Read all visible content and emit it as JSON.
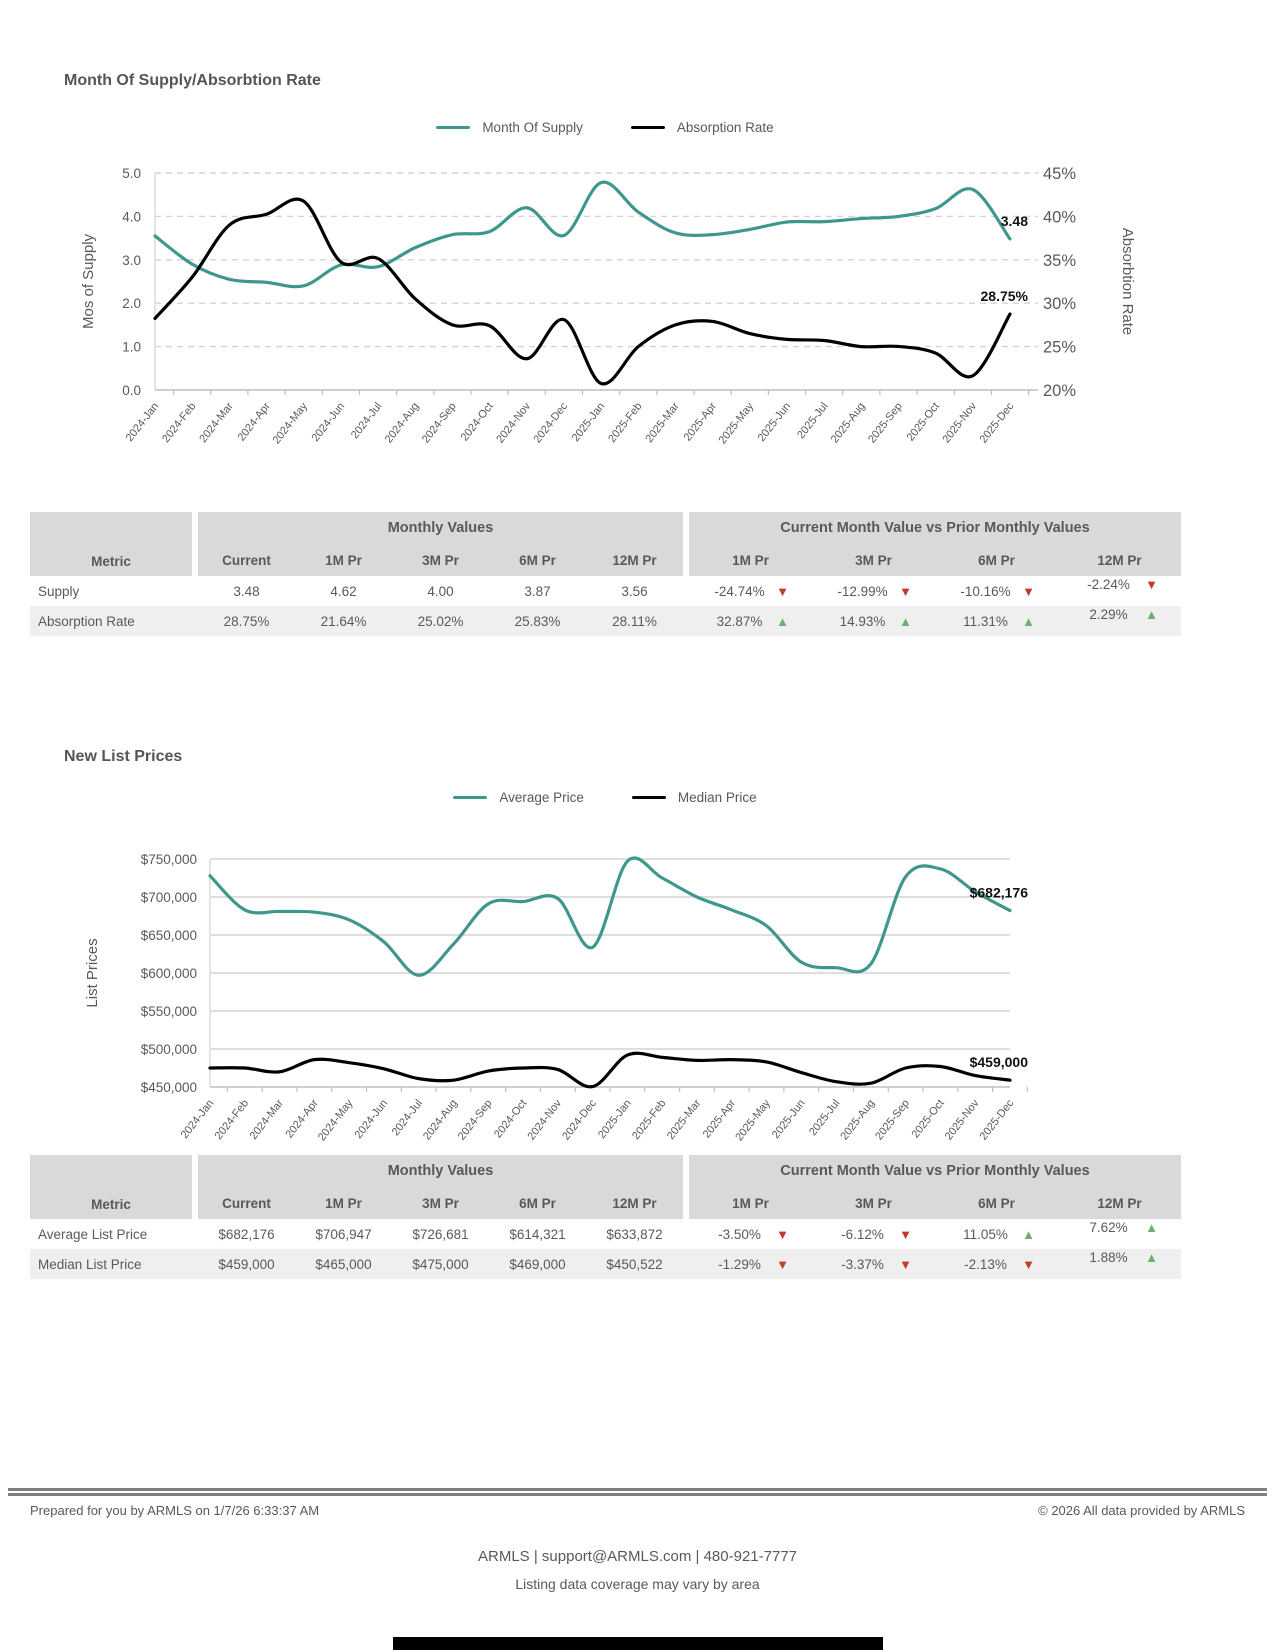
{
  "sections": [
    {
      "title": "Month Of Supply/Absorbtion Rate"
    },
    {
      "title": "New List Prices"
    }
  ],
  "colors": {
    "teal": "#3e978c",
    "black": "#000000",
    "up_green": "#6fae6f",
    "down_red": "#c23a2a",
    "text": "#595959"
  },
  "chart_data": [
    {
      "type": "line",
      "title": "Month Of Supply/Absorbtion Rate",
      "grid": "dashed",
      "legend_position": "top",
      "categories": [
        "2024-Jan",
        "2024-Feb",
        "2024-Mar",
        "2024-Apr",
        "2024-May",
        "2024-Jun",
        "2024-Jul",
        "2024-Aug",
        "2024-Sep",
        "2024-Oct",
        "2024-Nov",
        "2024-Dec",
        "2025-Jan",
        "2025-Feb",
        "2025-Mar",
        "2025-Apr",
        "2025-May",
        "2025-Jun",
        "2025-Jul",
        "2025-Aug",
        "2025-Sep",
        "2025-Oct",
        "2025-Nov",
        "2025-Dec"
      ],
      "series": [
        {
          "name": "Month Of Supply",
          "color_key": "teal",
          "axis": "left",
          "end_label": "3.48",
          "values": [
            3.55,
            2.9,
            2.55,
            2.48,
            2.4,
            2.88,
            2.84,
            3.28,
            3.58,
            3.65,
            4.2,
            3.56,
            4.78,
            4.1,
            3.62,
            3.58,
            3.7,
            3.87,
            3.88,
            3.95,
            4.0,
            4.18,
            4.62,
            3.48
          ]
        },
        {
          "name": "Absorption Rate",
          "color_key": "black",
          "axis": "right",
          "end_label": "28.75%",
          "values": [
            28.25,
            33.0,
            39.0,
            40.25,
            41.75,
            34.75,
            35.15,
            30.5,
            27.5,
            27.4,
            23.6,
            28.11,
            20.75,
            25.0,
            27.5,
            27.9,
            26.5,
            25.83,
            25.7,
            25.0,
            25.02,
            24.25,
            21.64,
            28.75
          ]
        }
      ],
      "left_axis": {
        "label": "Mos of Supply",
        "min": 0,
        "max": 5,
        "ticks": [
          {
            "v": 5,
            "label": "5.0"
          },
          {
            "v": 4,
            "label": "4.0"
          },
          {
            "v": 3,
            "label": "3.0"
          },
          {
            "v": 2,
            "label": "2.0"
          },
          {
            "v": 1,
            "label": "1.0"
          },
          {
            "v": 0,
            "label": "0.0"
          }
        ]
      },
      "right_axis": {
        "label": "Absorbtion Rate",
        "min": 20,
        "max": 45,
        "ticks": [
          {
            "v": 45,
            "label": "45%"
          },
          {
            "v": 40,
            "label": "40%"
          },
          {
            "v": 35,
            "label": "35%"
          },
          {
            "v": 30,
            "label": "30%"
          },
          {
            "v": 25,
            "label": "25%"
          },
          {
            "v": 20,
            "label": "20%"
          }
        ]
      }
    },
    {
      "type": "line",
      "title": "New List Prices",
      "grid": "solid",
      "legend_position": "top",
      "categories": [
        "2024-Jan",
        "2024-Feb",
        "2024-Mar",
        "2024-Apr",
        "2024-May",
        "2024-Jun",
        "2024-Jul",
        "2024-Aug",
        "2024-Sep",
        "2024-Oct",
        "2024-Nov",
        "2024-Dec",
        "2025-Jan",
        "2025-Feb",
        "2025-Mar",
        "2025-Apr",
        "2025-May",
        "2025-Jun",
        "2025-Jul",
        "2025-Aug",
        "2025-Sep",
        "2025-Oct",
        "2025-Nov",
        "2025-Dec"
      ],
      "series": [
        {
          "name": "Average Price",
          "color_key": "teal",
          "axis": "left",
          "end_label": "$682,176",
          "values": [
            728000,
            683000,
            681000,
            680000,
            670000,
            641000,
            597000,
            638000,
            691000,
            694000,
            698000,
            633872,
            747000,
            725000,
            700000,
            683000,
            662000,
            614321,
            607000,
            612000,
            726681,
            737000,
            706947,
            682176
          ]
        },
        {
          "name": "Median Price",
          "color_key": "black",
          "axis": "left",
          "end_label": "$459,000",
          "values": [
            475000,
            475000,
            470000,
            486000,
            482000,
            474000,
            461000,
            459000,
            471000,
            475000,
            473000,
            450522,
            492000,
            489000,
            485000,
            486000,
            483000,
            469000,
            457000,
            455000,
            475000,
            477000,
            465000,
            459000
          ]
        }
      ],
      "left_axis": {
        "label": "List Prices",
        "min": 450000,
        "max": 750000,
        "ticks": [
          {
            "v": 750000,
            "label": "$750,000"
          },
          {
            "v": 700000,
            "label": "$700,000"
          },
          {
            "v": 650000,
            "label": "$650,000"
          },
          {
            "v": 600000,
            "label": "$600,000"
          },
          {
            "v": 550000,
            "label": "$550,000"
          },
          {
            "v": 500000,
            "label": "$500,000"
          },
          {
            "v": 450000,
            "label": "$450,000"
          }
        ]
      }
    }
  ],
  "tables": [
    {
      "metric_header": "Metric",
      "group_headers": [
        "Monthly Values",
        "Current Month Value vs Prior Monthly Values"
      ],
      "value_columns": [
        "Current",
        "1M Pr",
        "3M Pr",
        "6M Pr",
        "12M Pr"
      ],
      "delta_columns": [
        "1M Pr",
        "3M Pr",
        "6M Pr",
        "12M Pr"
      ],
      "rows": [
        {
          "metric": "Supply",
          "values": [
            "3.48",
            "4.62",
            "4.00",
            "3.87",
            "3.56"
          ],
          "deltas": [
            {
              "value": "-24.74%",
              "direction": "down"
            },
            {
              "value": "-12.99%",
              "direction": "down"
            },
            {
              "value": "-10.16%",
              "direction": "down"
            },
            {
              "value": "-2.24%",
              "direction": "down"
            }
          ]
        },
        {
          "metric": "Absorption Rate",
          "values": [
            "28.75%",
            "21.64%",
            "25.02%",
            "25.83%",
            "28.11%"
          ],
          "deltas": [
            {
              "value": "32.87%",
              "direction": "up"
            },
            {
              "value": "14.93%",
              "direction": "up"
            },
            {
              "value": "11.31%",
              "direction": "up"
            },
            {
              "value": "2.29%",
              "direction": "up"
            }
          ]
        }
      ]
    },
    {
      "metric_header": "Metric",
      "group_headers": [
        "Monthly Values",
        "Current Month Value vs Prior Monthly Values"
      ],
      "value_columns": [
        "Current",
        "1M Pr",
        "3M Pr",
        "6M Pr",
        "12M Pr"
      ],
      "delta_columns": [
        "1M Pr",
        "3M Pr",
        "6M Pr",
        "12M Pr"
      ],
      "rows": [
        {
          "metric": "Average List Price",
          "values": [
            "$682,176",
            "$706,947",
            "$726,681",
            "$614,321",
            "$633,872"
          ],
          "deltas": [
            {
              "value": "-3.50%",
              "direction": "down"
            },
            {
              "value": "-6.12%",
              "direction": "down"
            },
            {
              "value": "11.05%",
              "direction": "up"
            },
            {
              "value": "7.62%",
              "direction": "up"
            }
          ]
        },
        {
          "metric": "Median List Price",
          "values": [
            "$459,000",
            "$465,000",
            "$475,000",
            "$469,000",
            "$450,522"
          ],
          "deltas": [
            {
              "value": "-1.29%",
              "direction": "down"
            },
            {
              "value": "-3.37%",
              "direction": "down"
            },
            {
              "value": "-2.13%",
              "direction": "down"
            },
            {
              "value": "1.88%",
              "direction": "up"
            }
          ]
        }
      ]
    }
  ],
  "footer": {
    "prepared": "Prepared for you by ARMLS on 1/7/26 6:33:37 AM",
    "copyright": "© 2026 All data provided by ARMLS",
    "contact": "ARMLS | support@ARMLS.com | 480-921-7777",
    "coverage": "Listing data coverage may vary by area"
  }
}
